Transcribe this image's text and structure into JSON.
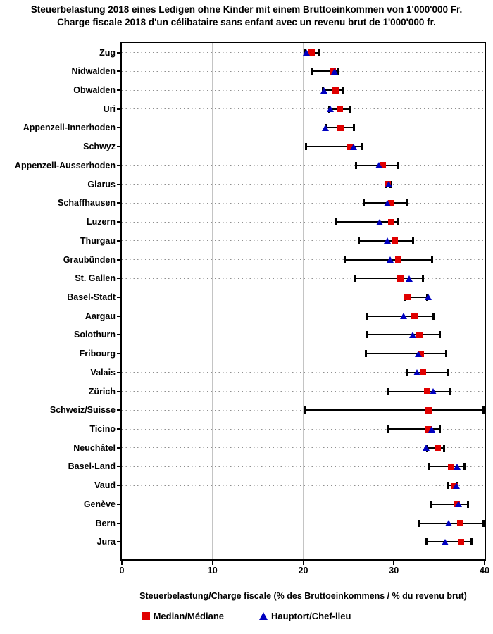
{
  "title": {
    "line1": "Steuerbelastung 2018 eines Ledigen ohne Kinder mit einem Bruttoeinkommen von 1'000'000 Fr.",
    "line2": "Charge fiscale 2018 d'un célibataire sans enfant avec un revenu brut de 1'000'000 fr."
  },
  "x_axis": {
    "label": "Steuerbelastung/Charge fiscale (% des Bruttoeinkommens / % du revenu brut)",
    "min": 0,
    "max": 40,
    "ticks": [
      0,
      10,
      20,
      30,
      40
    ]
  },
  "legend": {
    "items": [
      {
        "label": "Median/Médiane",
        "marker": "square",
        "color": "#e00000"
      },
      {
        "label": "Hauptort/Chef-lieu",
        "marker": "triangle",
        "color": "#0000c0"
      }
    ]
  },
  "colors": {
    "median_marker": "#e00000",
    "capital_marker": "#0000c0",
    "whisker": "#000000",
    "major_gridline": "#c4c4c4",
    "row_dotted_line": "#8f8f8f",
    "frame": "#000000",
    "background": "#ffffff"
  },
  "chart_data": {
    "type": "scatter",
    "subtype": "horizontal-dot-plot-with-min-max-ranges",
    "orientation": "horizontal",
    "title": "Steuerbelastung 2018 eines Ledigen ohne Kinder mit einem Bruttoeinkommen von 1'000'000 Fr.",
    "subtitle": "Charge fiscale 2018 d'un célibataire sans enfant avec un revenu brut de 1'000'000 fr.",
    "xlabel": "Steuerbelastung/Charge fiscale (% des Bruttoeinkommens / % du revenu brut)",
    "xlim": [
      0,
      40
    ],
    "xticks": [
      0,
      10,
      20,
      30,
      40
    ],
    "grid": {
      "vertical_major_gridlines": true,
      "horizontal_dotted_row_lines": true
    },
    "legend_position": "bottom",
    "series_legend": [
      "Median/Médiane",
      "Hauptort/Chef-lieu"
    ],
    "rows": [
      {
        "canton": "Zug",
        "range": [
          20.2,
          21.8
        ],
        "median": 20.9,
        "hauptort": 20.4
      },
      {
        "canton": "Nidwalden",
        "range": [
          20.9,
          23.8
        ],
        "median": 23.3,
        "hauptort": 23.5
      },
      {
        "canton": "Obwalden",
        "range": [
          22.2,
          24.4
        ],
        "median": 23.6,
        "hauptort": 22.3
      },
      {
        "canton": "Uri",
        "range": [
          22.9,
          25.2
        ],
        "median": 24.0,
        "hauptort": 23.0
      },
      {
        "canton": "Appenzell-Innerhoden",
        "range": [
          22.6,
          25.6
        ],
        "median": 24.1,
        "hauptort": 22.5
      },
      {
        "canton": "Schwyz",
        "range": [
          20.3,
          26.5
        ],
        "median": 25.2,
        "hauptort": 25.6
      },
      {
        "canton": "Appenzell-Ausserhoden",
        "range": [
          25.8,
          30.4
        ],
        "median": 28.8,
        "hauptort": 28.4
      },
      {
        "canton": "Glarus",
        "range": [
          29.1,
          29.6
        ],
        "median": 29.3,
        "hauptort": 29.5
      },
      {
        "canton": "Schaffhausen",
        "range": [
          26.7,
          31.5
        ],
        "median": 29.7,
        "hauptort": 29.3
      },
      {
        "canton": "Luzern",
        "range": [
          23.6,
          30.4
        ],
        "median": 29.7,
        "hauptort": 28.5
      },
      {
        "canton": "Thurgau",
        "range": [
          26.1,
          32.1
        ],
        "median": 30.1,
        "hauptort": 29.3
      },
      {
        "canton": "Graubünden",
        "range": [
          24.6,
          34.2
        ],
        "median": 30.5,
        "hauptort": 29.6
      },
      {
        "canton": "St. Gallen",
        "range": [
          25.7,
          33.2
        ],
        "median": 30.7,
        "hauptort": 31.7
      },
      {
        "canton": "Basel-Stadt",
        "range": [
          31.2,
          33.7
        ],
        "median": 31.5,
        "hauptort": 33.8
      },
      {
        "canton": "Aargau",
        "range": [
          27.1,
          34.4
        ],
        "median": 32.3,
        "hauptort": 31.1
      },
      {
        "canton": "Solothurn",
        "range": [
          27.1,
          35.1
        ],
        "median": 32.8,
        "hauptort": 32.1
      },
      {
        "canton": "Fribourg",
        "range": [
          26.9,
          35.8
        ],
        "median": 33.0,
        "hauptort": 32.7
      },
      {
        "canton": "Valais",
        "range": [
          31.5,
          35.9
        ],
        "median": 33.2,
        "hauptort": 32.6
      },
      {
        "canton": "Zürich",
        "range": [
          29.3,
          36.2
        ],
        "median": 33.7,
        "hauptort": 34.4
      },
      {
        "canton": "Schweiz/Suisse",
        "range": [
          20.2,
          39.9
        ],
        "median": 33.8,
        "hauptort": null
      },
      {
        "canton": "Ticino",
        "range": [
          29.3,
          35.1
        ],
        "median": 33.8,
        "hauptort": 34.2
      },
      {
        "canton": "Neuchâtel",
        "range": [
          33.7,
          35.5
        ],
        "median": 34.8,
        "hauptort": 33.6
      },
      {
        "canton": "Basel-Land",
        "range": [
          33.8,
          37.8
        ],
        "median": 36.3,
        "hauptort": 37.0
      },
      {
        "canton": "Vaud",
        "range": [
          35.9,
          37.0
        ],
        "median": 36.7,
        "hauptort": 36.9
      },
      {
        "canton": "Genève",
        "range": [
          34.1,
          38.2
        ],
        "median": 36.9,
        "hauptort": 37.2
      },
      {
        "canton": "Bern",
        "range": [
          32.7,
          39.9
        ],
        "median": 37.3,
        "hauptort": 36.1
      },
      {
        "canton": "Jura",
        "range": [
          33.6,
          38.6
        ],
        "median": 37.4,
        "hauptort": 35.7
      }
    ]
  }
}
